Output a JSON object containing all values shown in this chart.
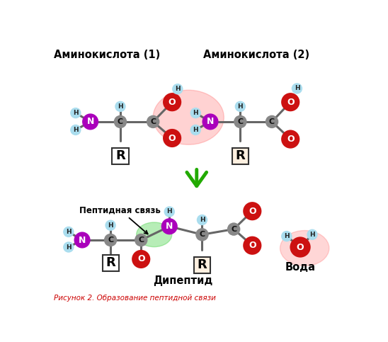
{
  "caption": "Рисунок 2. Образование пептидной связи",
  "label_aa1": "Аминокислота (1)",
  "label_aa2": "Аминокислота (2)",
  "label_dipeptide": "Дипептид",
  "label_water": "Вода",
  "label_peptide_bond": "Пептидная связь",
  "bg_color": "#ffffff",
  "N_color": "#aa00bb",
  "C_color": "#888888",
  "O_color": "#cc1111",
  "H_color": "#aaddee",
  "bond_color": "#666666",
  "arrow_color": "#22aa00",
  "red_glow_color": "#ff3333",
  "green_glow_color": "#33cc33",
  "caption_color": "#cc0000"
}
